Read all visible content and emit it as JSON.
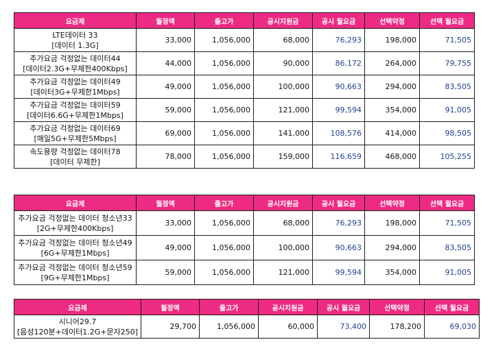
{
  "colors": {
    "header_bg": "#ee2b82",
    "header_text": "#ffffff",
    "blue_value": "#1e3f8f",
    "border": "#1a1a1a"
  },
  "tables": [
    {
      "headers": [
        "요금제",
        "월정액",
        "출고가",
        "공시지원금",
        "공시 월요금",
        "선택약정",
        "선택 월요금"
      ],
      "rows": [
        {
          "name": [
            "LTE데이터 33",
            "[데이터 1.3G]"
          ],
          "values": [
            "33,000",
            "1,056,000",
            "68,000",
            "76,293",
            "198,000",
            "71,505"
          ]
        },
        {
          "name": [
            "추가요금 걱정없는 데이터44",
            "[데이터2.3G+무제한400Kbps]"
          ],
          "values": [
            "44,000",
            "1,056,000",
            "90,000",
            "86,172",
            "264,000",
            "79,755"
          ]
        },
        {
          "name": [
            "추가요금 걱정없는 데이터49",
            "[데이터3G+무제한1Mbps]"
          ],
          "values": [
            "49,000",
            "1,056,000",
            "100,000",
            "90,663",
            "294,000",
            "83,505"
          ]
        },
        {
          "name": [
            "추가요금 걱정없는 데이터59",
            "[데이터6.6G+무제한1Mbps]"
          ],
          "values": [
            "59,000",
            "1,056,000",
            "121,000",
            "99,594",
            "354,000",
            "91,005"
          ]
        },
        {
          "name": [
            "추가요금 걱정없는 데이터69",
            "[매일5G+무제한5Mbps]"
          ],
          "values": [
            "69,000",
            "1,056,000",
            "141,000",
            "108,576",
            "414,000",
            "98,505"
          ]
        },
        {
          "name": [
            "속도용량 걱정없는 데이터78",
            "[데이터 무제한]"
          ],
          "values": [
            "78,000",
            "1,056,000",
            "159,000",
            "116,659",
            "468,000",
            "105,255"
          ]
        }
      ]
    },
    {
      "headers": [
        "요금제",
        "월정액",
        "출고가",
        "공시지원금",
        "공시 월요금",
        "선택약정",
        "선택 월요금"
      ],
      "rows": [
        {
          "name": [
            "추가요금 걱정없는 데이터 청소년33",
            "[2G+무제한400Kbps]"
          ],
          "values": [
            "33,000",
            "1,056,000",
            "68,000",
            "76,293",
            "198,000",
            "71,505"
          ]
        },
        {
          "name": [
            "추가요금 걱정없는 데이터 청소년49",
            "[6G+무제한1Mbps]"
          ],
          "values": [
            "49,000",
            "1,056,000",
            "100,000",
            "90,663",
            "294,000",
            "83,505"
          ]
        },
        {
          "name": [
            "추가요금 걱정없는 데이터 청소년59",
            "[9G+무제한1Mbps]"
          ],
          "values": [
            "59,000",
            "1,056,000",
            "121,000",
            "99,594",
            "354,000",
            "91,005"
          ]
        }
      ]
    },
    {
      "headers": [
        "요금제",
        "월정액",
        "출고가",
        "공시지원금",
        "공시 월요금",
        "선택약정",
        "선택 월요금"
      ],
      "rows": [
        {
          "name": [
            "시니어29.7",
            "[음성120분+데이터1.2G+문자250]"
          ],
          "values": [
            "29,700",
            "1,056,000",
            "60,000",
            "73,400",
            "178,200",
            "69,030"
          ]
        }
      ]
    }
  ]
}
